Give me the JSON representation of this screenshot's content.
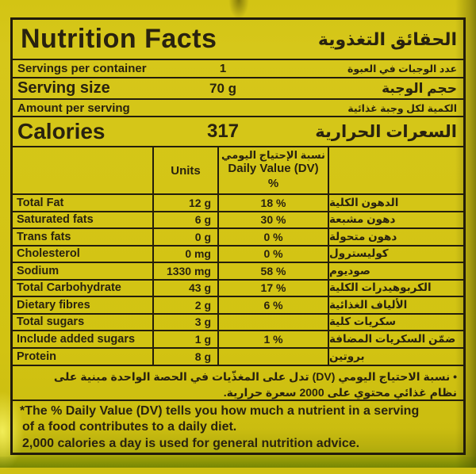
{
  "colors": {
    "bag_yellow": "#d2c312",
    "ink": "#29220f",
    "border_black": "#241e0c"
  },
  "label": {
    "title_en": "Nutrition Facts",
    "title_ar": "الحقائق التغذوية",
    "servings": {
      "en": "Servings per container",
      "value": "1",
      "ar": "عدد الوجبات في العبوة"
    },
    "serving_size": {
      "en": "Serving size",
      "value": "70 g",
      "ar": "حجم الوجبة"
    },
    "amount": {
      "en": "Amount per serving",
      "ar": "الكمية لكل وجبة غذائية"
    },
    "calories": {
      "en": "Calories",
      "value": "317",
      "ar": "السعرات الحرارية"
    },
    "table": {
      "units_header": "Units",
      "dv_header_ar": "نسبة الإحتياج اليومي",
      "dv_header_en": "Daily Value (DV)",
      "dv_header_pct": "%",
      "rows": [
        {
          "en": "Total Fat",
          "units": "12 g",
          "dv": "18 %",
          "ar": "الدهون الكلية"
        },
        {
          "en": "Saturated fats",
          "units": "6 g",
          "dv": "30 %",
          "ar": "دهون مشبعة"
        },
        {
          "en": "Trans fats",
          "units": "0 g",
          "dv": "0 %",
          "ar": "دهون متحولة"
        },
        {
          "en": "Cholesterol",
          "units": "0 mg",
          "dv": "0 %",
          "ar": "كوليسترول"
        },
        {
          "en": "Sodium",
          "units": "1330 mg",
          "dv": "58 %",
          "ar": "صوديوم"
        },
        {
          "en": "Total Carbohydrate",
          "units": "43 g",
          "dv": "17 %",
          "ar": "الكربوهيدرات الكلية"
        },
        {
          "en": "Dietary fibres",
          "units": "2 g",
          "dv": "6 %",
          "ar": "الألياف الغذائية"
        },
        {
          "en": "Total sugars",
          "units": "3 g",
          "dv": "",
          "ar": "سكريات كلية"
        },
        {
          "en": "Include added sugars",
          "units": "1 g",
          "dv": "1 %",
          "ar": "ضمّن السكريات المضافة"
        },
        {
          "en": "Protein",
          "units": "8 g",
          "dv": "",
          "ar": "بروتين"
        }
      ]
    },
    "footnote_ar_line1": "• نسبة الاحتياج اليومي (DV) تدل على المغذّيات في الحصة الواحدة مبنية على",
    "footnote_ar_line2": "نظام غذائي محتوي على 2000 سعرة حرارية.",
    "footnote_en_line1": "*The % Daily Value (DV) tells you how much a nutrient in a serving",
    "footnote_en_line2": "of a food contributes to a daily diet.",
    "footnote_en_line3": "2,000 calories a day is used for general nutrition advice."
  }
}
